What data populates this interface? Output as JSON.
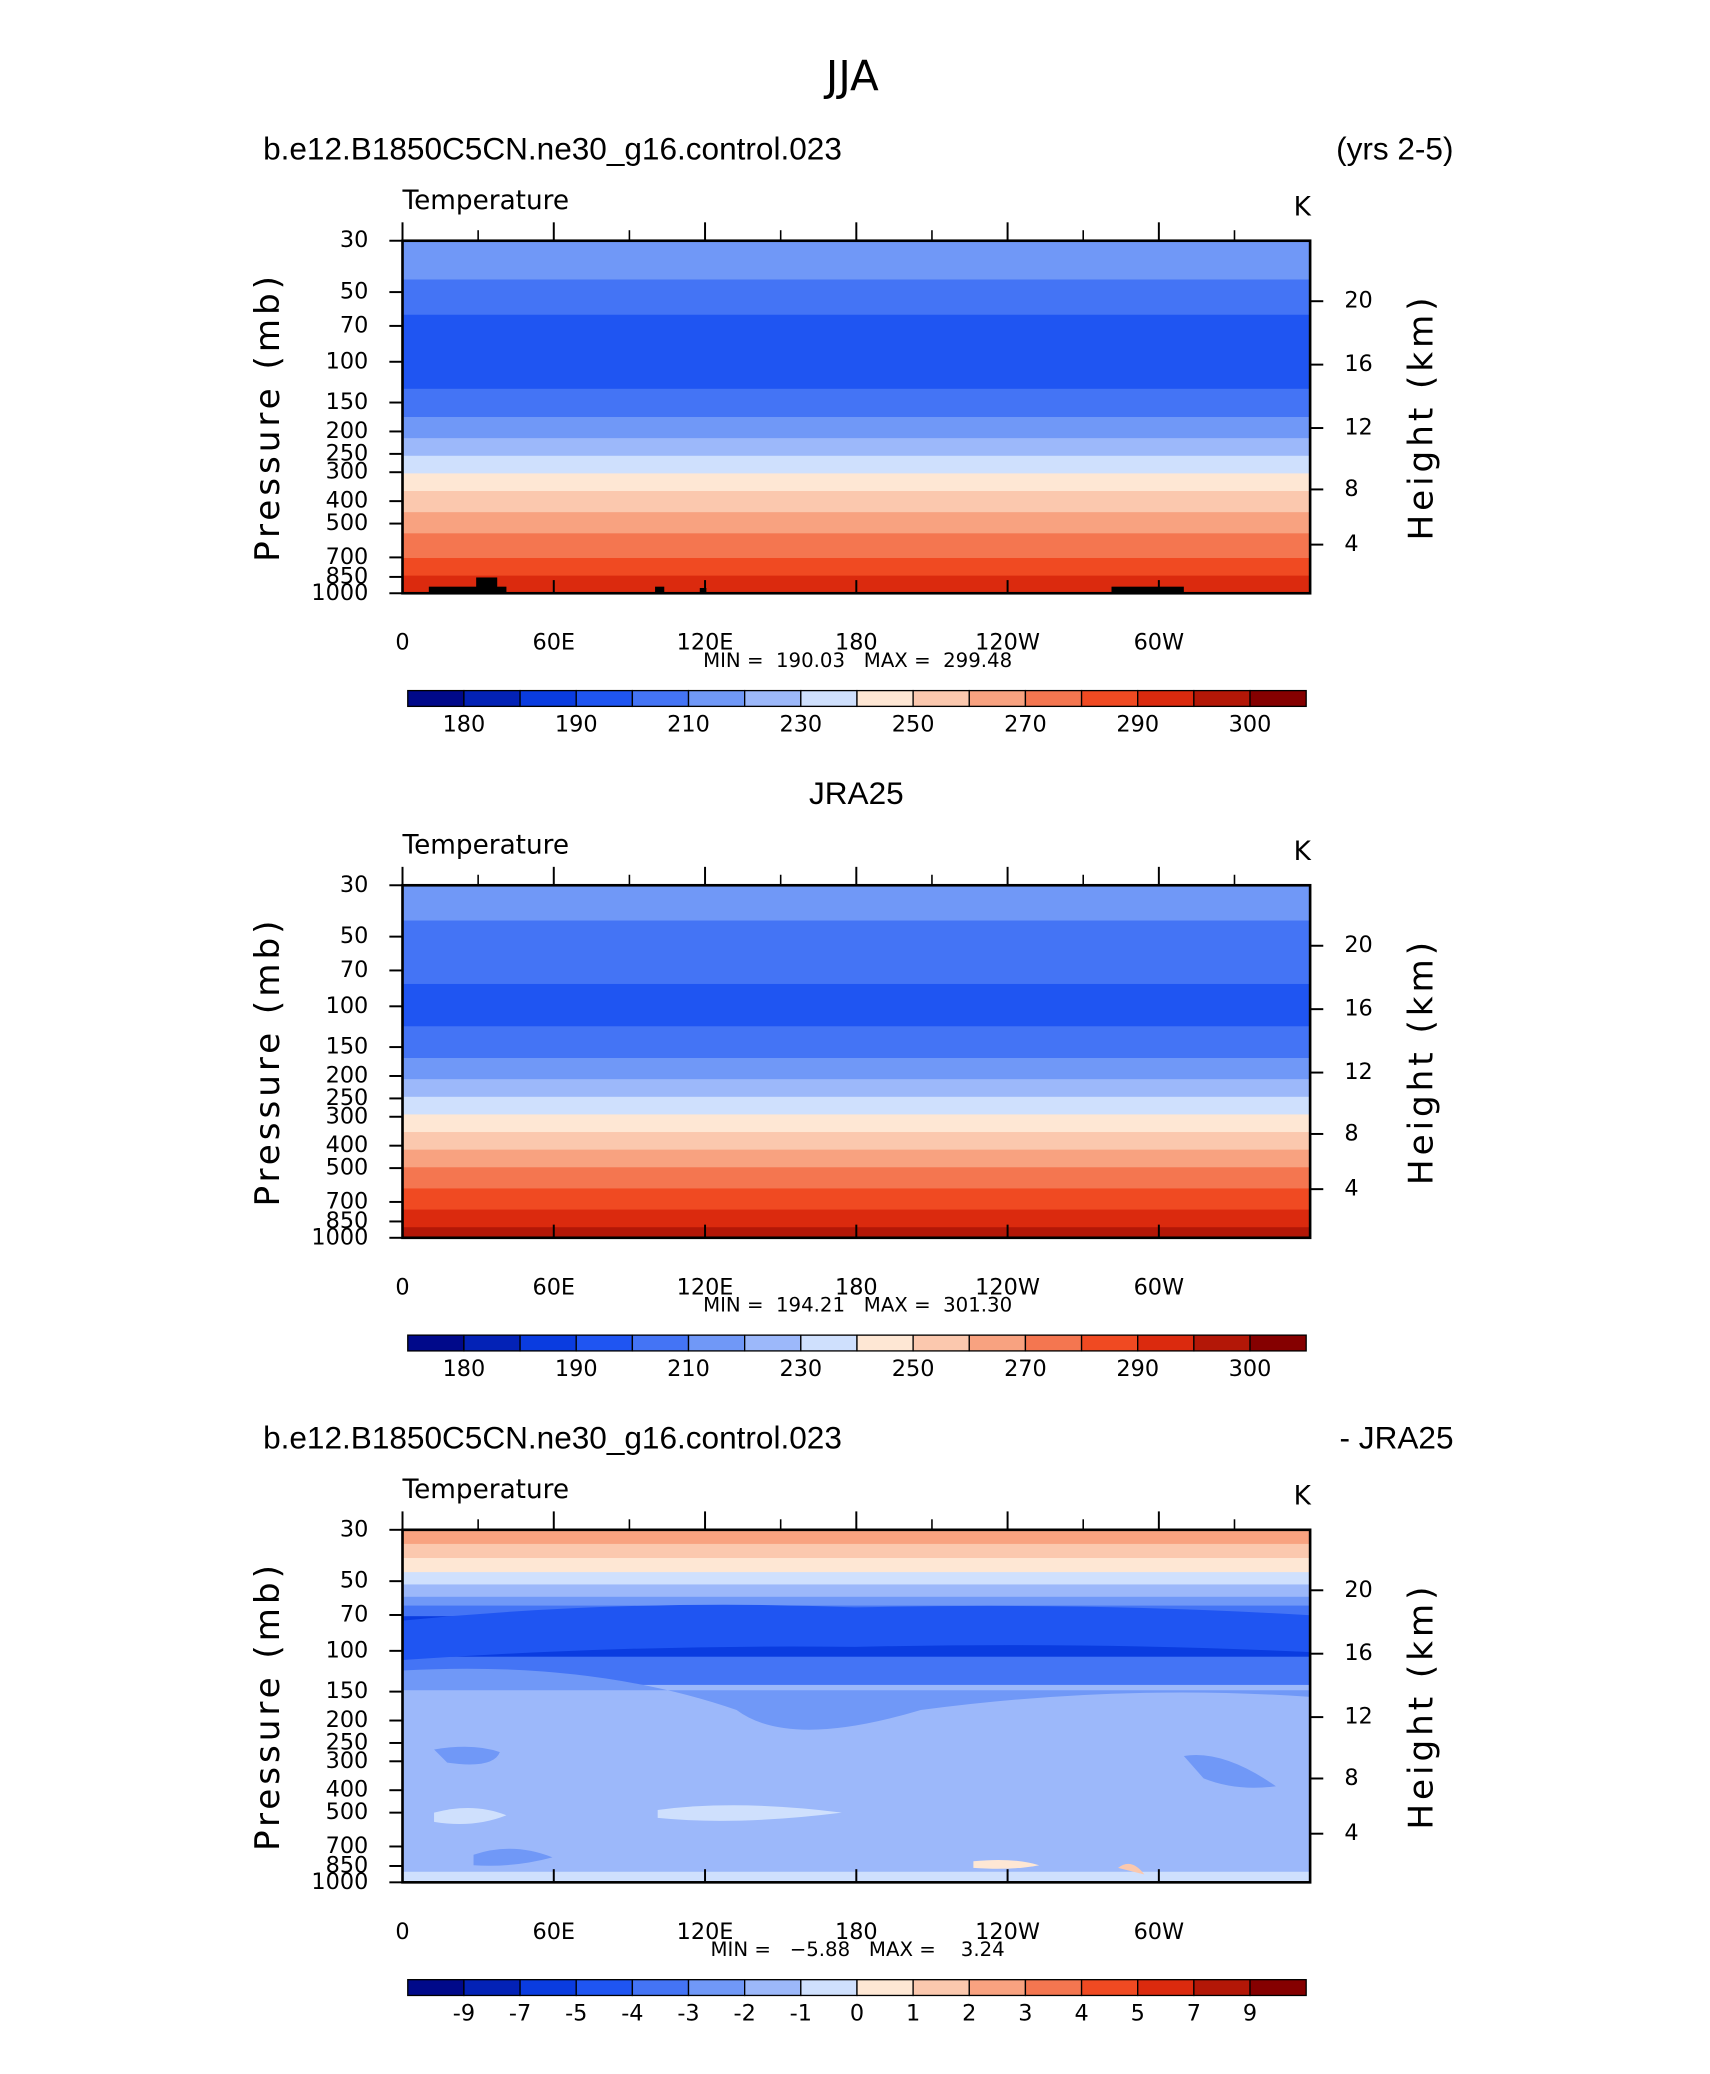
{
  "title": "JJA",
  "chart_data": [
    {
      "type": "contour",
      "title_left": "b.e12.B1850C5CN.ne30_g16.control.023",
      "title_right": "(yrs 2-5)",
      "subtitle": "Temperature",
      "units": "K",
      "ylabel": "Pressure (mb)",
      "y2label": "Height (km)",
      "ylim": [
        30,
        1000
      ],
      "ylog": true,
      "yticks": [
        30,
        50,
        70,
        100,
        150,
        200,
        250,
        300,
        400,
        500,
        700,
        850,
        1000
      ],
      "y2ticks": [
        4,
        8,
        12,
        16,
        20
      ],
      "xlim": [
        0,
        360
      ],
      "xticks": [
        0,
        {
          "value": 60,
          "label": "60E"
        },
        {
          "value": 120,
          "label": "120E"
        },
        180,
        {
          "value": 240,
          "label": "120W"
        },
        {
          "value": 300,
          "label": "60W"
        }
      ],
      "stats": "MIN =  190.03   MAX =  299.48",
      "colorbar": {
        "colors": [
          "#00098a",
          "#0322b6",
          "#0a3ce0",
          "#1f55f2",
          "#4474f5",
          "#7098f7",
          "#9cb8fa",
          "#cfe0fd",
          "#fee7d4",
          "#fbc8ae",
          "#f8a280",
          "#f47650",
          "#f04a22",
          "#db2a0e",
          "#b31707",
          "#850000"
        ],
        "labels": [
          180,
          190,
          210,
          230,
          250,
          270,
          290,
          300
        ]
      }
    },
    {
      "type": "contour",
      "title_center": "JRA25",
      "subtitle": "Temperature",
      "units": "K",
      "ylabel": "Pressure (mb)",
      "y2label": "Height (km)",
      "ylim": [
        30,
        1000
      ],
      "ylog": true,
      "yticks": [
        30,
        50,
        70,
        100,
        150,
        200,
        250,
        300,
        400,
        500,
        700,
        850,
        1000
      ],
      "y2ticks": [
        4,
        8,
        12,
        16,
        20
      ],
      "xlim": [
        0,
        360
      ],
      "xticks": [
        0,
        {
          "value": 60,
          "label": "60E"
        },
        {
          "value": 120,
          "label": "120E"
        },
        180,
        {
          "value": 240,
          "label": "120W"
        },
        {
          "value": 300,
          "label": "60W"
        }
      ],
      "stats": "MIN =  194.21   MAX =  301.30",
      "colorbar": {
        "colors": [
          "#00098a",
          "#0322b6",
          "#0a3ce0",
          "#1f55f2",
          "#4474f5",
          "#7098f7",
          "#9cb8fa",
          "#cfe0fd",
          "#fee7d4",
          "#fbc8ae",
          "#f8a280",
          "#f47650",
          "#f04a22",
          "#db2a0e",
          "#b31707",
          "#850000"
        ],
        "labels": [
          180,
          190,
          210,
          230,
          250,
          270,
          290,
          300
        ]
      }
    },
    {
      "type": "contour",
      "title_left": "b.e12.B1850C5CN.ne30_g16.control.023",
      "title_right": "- JRA25",
      "subtitle": "Temperature",
      "units": "K",
      "ylabel": "Pressure (mb)",
      "y2label": "Height (km)",
      "ylim": [
        30,
        1000
      ],
      "ylog": true,
      "yticks": [
        30,
        50,
        70,
        100,
        150,
        200,
        250,
        300,
        400,
        500,
        700,
        850,
        1000
      ],
      "y2ticks": [
        4,
        8,
        12,
        16,
        20
      ],
      "xlim": [
        0,
        360
      ],
      "xticks": [
        0,
        {
          "value": 60,
          "label": "60E"
        },
        {
          "value": 120,
          "label": "120E"
        },
        180,
        {
          "value": 240,
          "label": "120W"
        },
        {
          "value": 300,
          "label": "60W"
        }
      ],
      "stats": "MIN =   −5.88   MAX =    3.24",
      "colorbar": {
        "colors": [
          "#00098a",
          "#0322b6",
          "#0a3ce0",
          "#1f55f2",
          "#4474f5",
          "#7098f7",
          "#9cb8fa",
          "#cfe0fd",
          "#fee7d4",
          "#fbc8ae",
          "#f8a280",
          "#f47650",
          "#f04a22",
          "#db2a0e",
          "#b31707",
          "#850000"
        ],
        "labels": [
          -9,
          -7,
          -5,
          -4,
          -3,
          -2,
          -1,
          0,
          1,
          2,
          3,
          4,
          5,
          7,
          9
        ]
      }
    }
  ]
}
